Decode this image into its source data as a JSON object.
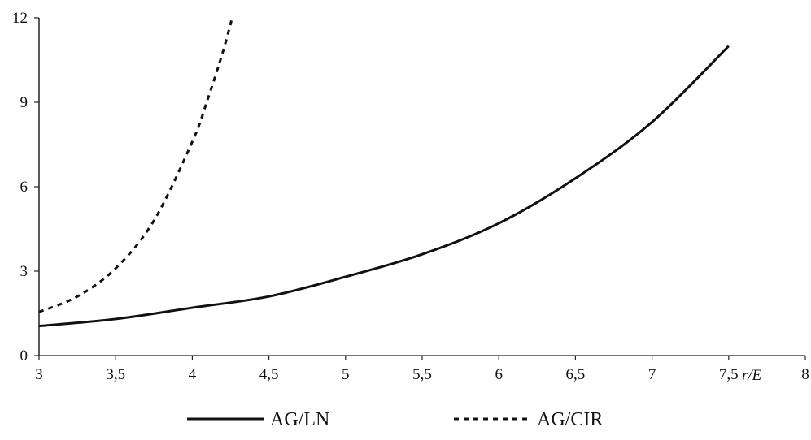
{
  "chart_data": {
    "type": "line",
    "title": "",
    "xlabel": "r/E",
    "ylabel": "",
    "xlim": [
      3,
      8
    ],
    "ylim": [
      0,
      12
    ],
    "x_ticks": [
      "3",
      "3,5",
      "4",
      "4,5",
      "5",
      "5,5",
      "6",
      "6,5",
      "7",
      "7,5",
      "8"
    ],
    "y_ticks": [
      "0",
      "3",
      "6",
      "9",
      "12"
    ],
    "grid": false,
    "legend_position": "bottom",
    "series": [
      {
        "name": "AG/LN",
        "line_style": "solid",
        "color": "#111111",
        "x": [
          3,
          3.5,
          4,
          4.5,
          5,
          5.5,
          6,
          6.5,
          7,
          7.5
        ],
        "y": [
          1.05,
          1.3,
          1.7,
          2.1,
          2.8,
          3.6,
          4.7,
          6.3,
          8.3,
          11.0
        ]
      },
      {
        "name": "AG/CIR",
        "line_style": "dashed",
        "color": "#111111",
        "x": [
          3,
          3.25,
          3.5,
          3.75,
          4,
          4.1,
          4.2,
          4.26
        ],
        "y": [
          1.55,
          2.1,
          3.1,
          4.8,
          7.6,
          9.1,
          10.8,
          12.0
        ]
      }
    ]
  }
}
